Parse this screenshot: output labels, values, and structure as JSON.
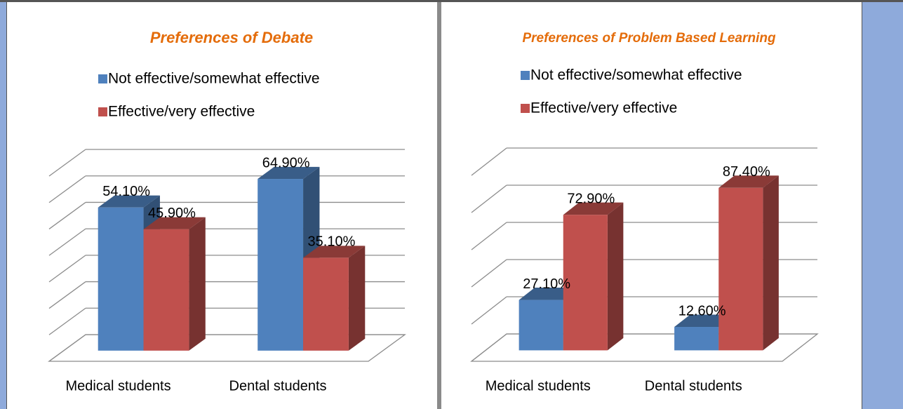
{
  "chart_data": [
    {
      "type": "bar",
      "title": "Preferences of Debate",
      "categories": [
        "Medical students",
        "Dental students"
      ],
      "series": [
        {
          "name": "Not effective/somewhat effective",
          "color": "#4f81bd",
          "values": [
            54.1,
            64.9
          ],
          "value_labels": [
            "54.10%",
            "64.90%"
          ]
        },
        {
          "name": "Effective/very effective",
          "color": "#c0504d",
          "values": [
            45.9,
            35.1
          ],
          "value_labels": [
            "45.90%",
            "35.10%"
          ]
        }
      ],
      "ylim": [
        0,
        70
      ],
      "yticks": [
        0,
        10,
        20,
        30,
        40,
        50,
        60,
        70
      ],
      "grid": true
    },
    {
      "type": "bar",
      "title": "Preferences of Problem Based Learning",
      "categories": [
        "Medical students",
        "Dental students"
      ],
      "series": [
        {
          "name": "Not effective/somewhat effective",
          "color": "#4f81bd",
          "values": [
            27.1,
            12.6
          ],
          "value_labels": [
            "27.10%",
            "12.60%"
          ]
        },
        {
          "name": "Effective/very effective",
          "color": "#c0504d",
          "values": [
            72.9,
            87.4
          ],
          "value_labels": [
            "72.90%",
            "87.40%"
          ]
        }
      ],
      "ylim": [
        0,
        100
      ],
      "yticks": [
        0,
        20,
        40,
        60,
        80,
        100
      ],
      "grid": true
    }
  ]
}
